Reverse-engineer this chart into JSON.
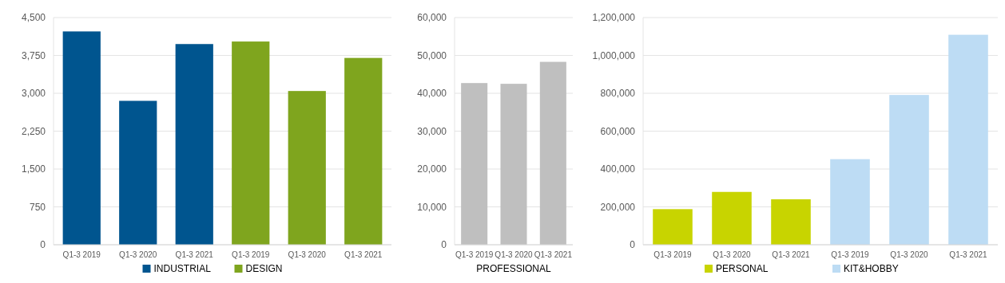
{
  "chart_data": [
    {
      "type": "bar",
      "categories": [
        "Q1-3 2019",
        "Q1-3 2020",
        "Q1-3 2021",
        "Q1-3 2019",
        "Q1-3 2020",
        "Q1-3 2021"
      ],
      "series": [
        {
          "name": "INDUSTRIAL",
          "color": "#00558f",
          "values": [
            4225,
            2850,
            3975,
            null,
            null,
            null
          ]
        },
        {
          "name": "DESIGN",
          "color": "#7fa51e",
          "values": [
            null,
            null,
            null,
            4025,
            3045,
            3700
          ]
        }
      ],
      "ylim": [
        0,
        4500
      ],
      "yticks": [
        {
          "value": 0,
          "label": "0"
        },
        {
          "value": 750,
          "label": "750"
        },
        {
          "value": 1500,
          "label": "1,500"
        },
        {
          "value": 2250,
          "label": "2,250"
        },
        {
          "value": 3000,
          "label": "3,000"
        },
        {
          "value": 3750,
          "label": "3,750"
        },
        {
          "value": 4500,
          "label": "4,500"
        }
      ],
      "grid": "y",
      "legend": "bottom"
    },
    {
      "type": "bar",
      "categories": [
        "Q1-3 2019",
        "Q1-3 2020",
        "Q1-3 2021"
      ],
      "xlabel": "PROFESSIONAL",
      "series": [
        {
          "color": "#bfbfbf",
          "values": [
            42700,
            42500,
            48300
          ]
        }
      ],
      "ylim": [
        0,
        60000
      ],
      "yticks": [
        {
          "value": 0,
          "label": "0"
        },
        {
          "value": 10000,
          "label": "10,000"
        },
        {
          "value": 20000,
          "label": "20,000"
        },
        {
          "value": 30000,
          "label": "30,000"
        },
        {
          "value": 40000,
          "label": "40,000"
        },
        {
          "value": 50000,
          "label": "50,000"
        },
        {
          "value": 60000,
          "label": "60,000"
        }
      ],
      "grid": "y"
    },
    {
      "type": "bar",
      "categories": [
        "Q1-3 2019",
        "Q1-3 2020",
        "Q1-3 2021",
        "Q1-3 2019",
        "Q1-3 2020",
        "Q1-3 2021"
      ],
      "series": [
        {
          "name": "PERSONAL",
          "color": "#c8d400",
          "values": [
            188000,
            279000,
            240000,
            null,
            null,
            null
          ]
        },
        {
          "name": "KIT&HOBBY",
          "color": "#bddcf4",
          "values": [
            null,
            null,
            null,
            452000,
            791000,
            1109000
          ]
        }
      ],
      "ylim": [
        0,
        1200000
      ],
      "yticks": [
        {
          "value": 0,
          "label": "0"
        },
        {
          "value": 200000,
          "label": "200,000"
        },
        {
          "value": 400000,
          "label": "400,000"
        },
        {
          "value": 600000,
          "label": "600,000"
        },
        {
          "value": 800000,
          "label": "800,000"
        },
        {
          "value": 1000000,
          "label": "1,000,000"
        },
        {
          "value": 1200000,
          "label": "1,200,000"
        }
      ],
      "grid": "y",
      "legend": "bottom"
    }
  ]
}
